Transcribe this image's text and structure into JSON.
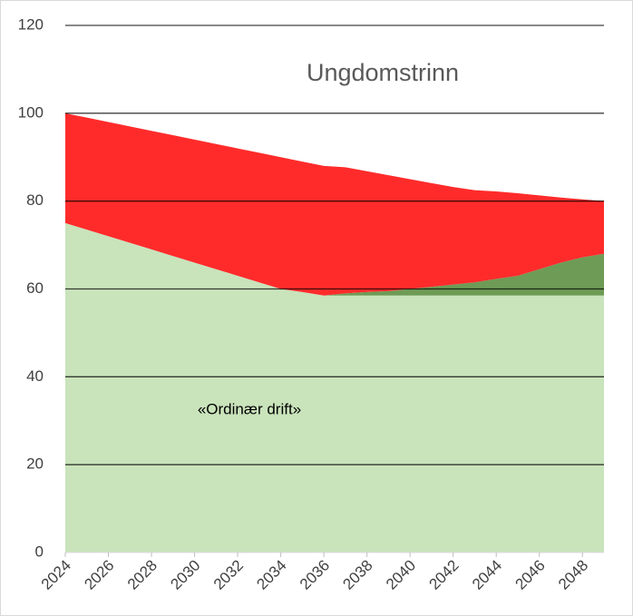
{
  "chart_data": {
    "type": "stacked-area",
    "title": "Ungdomstrinn",
    "annotation": "«Ordinær drift»",
    "x": [
      2024,
      2025,
      2026,
      2027,
      2028,
      2029,
      2030,
      2031,
      2032,
      2033,
      2034,
      2035,
      2036,
      2037,
      2038,
      2039,
      2040,
      2041,
      2042,
      2043,
      2044,
      2045,
      2046,
      2047,
      2048,
      2049
    ],
    "series": [
      {
        "color": "#c9e3bb",
        "values": [
          75,
          73.5,
          72,
          70.5,
          69,
          67.5,
          66,
          64.5,
          63,
          61.5,
          60,
          59.3,
          58.5,
          58.5,
          58.5,
          58.5,
          58.5,
          58.5,
          58.5,
          58.5,
          58.5,
          58.5,
          58.5,
          58.5,
          58.5,
          58.5
        ]
      },
      {
        "color": "#6e9b55",
        "values": [
          0,
          0,
          0,
          0,
          0,
          0,
          0,
          0,
          0,
          0,
          0,
          0,
          0,
          0.5,
          0.8,
          1.0,
          1.5,
          2.0,
          2.5,
          3.0,
          3.8,
          4.5,
          6.0,
          7.5,
          8.7,
          9.5
        ]
      },
      {
        "color": "#ff2b2b",
        "values": [
          25,
          25.5,
          26,
          26.5,
          27,
          27.5,
          28,
          28.5,
          29,
          29.5,
          30,
          29.7,
          29.5,
          28.7,
          27.5,
          26.4,
          25,
          23.6,
          22.2,
          21,
          19.9,
          18.8,
          16.8,
          14.8,
          13.2,
          12
        ]
      }
    ],
    "xlim": [
      2024,
      2049
    ],
    "xticks": [
      2024,
      2026,
      2028,
      2030,
      2032,
      2034,
      2036,
      2038,
      2040,
      2042,
      2044,
      2046,
      2048
    ],
    "ylim": [
      0,
      120
    ],
    "yticks": [
      0,
      20,
      40,
      60,
      80,
      100,
      120
    ],
    "grid": true
  }
}
